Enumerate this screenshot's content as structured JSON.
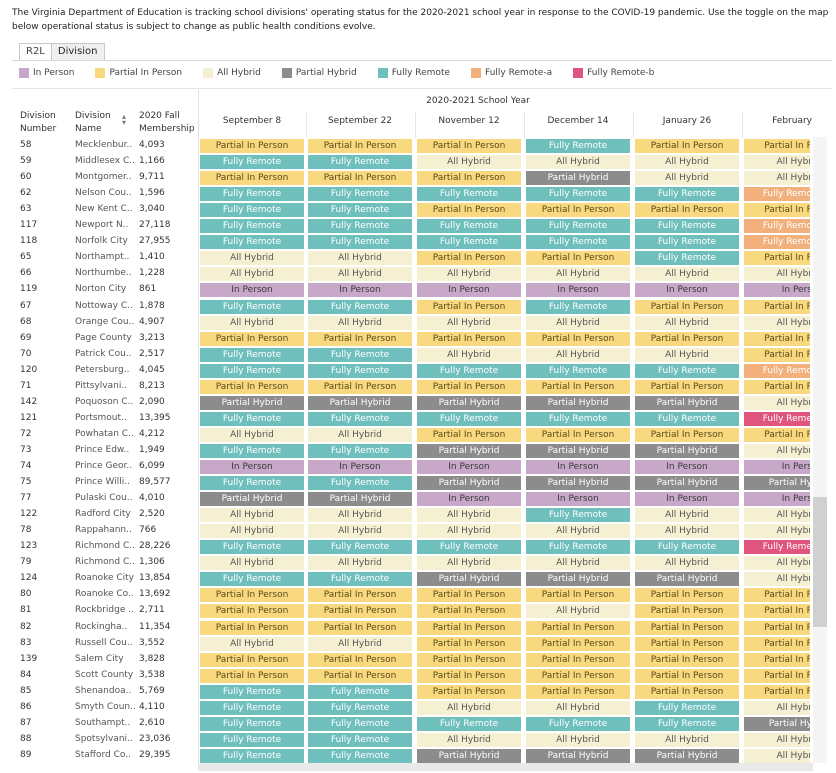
{
  "intro_text": "The Virginia Department of Education is tracking school divisions' operating status  for the 2020-2021 school year in response to the COVID-19 pandemic. Use the toggle on the map below operational status is subject to change as public health conditions evolve.",
  "tabs": [
    {
      "label": "R2L",
      "active": false
    },
    {
      "label": "Division",
      "active": true
    }
  ],
  "legend": [
    {
      "label": "In Person",
      "color": "#c8a8c8"
    },
    {
      "label": "Partial In Person",
      "color": "#f9d97f"
    },
    {
      "label": "All Hybrid",
      "color": "#f6f0d2"
    },
    {
      "label": "Partial Hybrid",
      "color": "#8c8c8c"
    },
    {
      "label": "Fully Remote",
      "color": "#6fbfbd"
    },
    {
      "label": "Fully Remote-a",
      "color": "#f2b07c"
    },
    {
      "label": "Fully Remote-b",
      "color": "#e0557d"
    }
  ],
  "axis_title": "2020-2021 School Year",
  "headers": {
    "division_number": "Division Number",
    "division_name": "Division Name",
    "membership": "2020 Fall Membership"
  },
  "columns": [
    "September 8",
    "September 22",
    "November 12",
    "December 14",
    "January 26",
    "February"
  ],
  "status_labels": {
    "in": "In Person",
    "pip": "Partial In Person",
    "ah": "All Hybrid",
    "ph": "Partial Hybrid",
    "fr": "Fully Remote",
    "fra": "Fully Remote",
    "frb": "Fully Remote"
  },
  "rows": [
    {
      "num": "58",
      "name": "Mecklenbur..",
      "mem": "4,093",
      "s": [
        "pip",
        "pip",
        "pip",
        "fr",
        "pip",
        "pip"
      ]
    },
    {
      "num": "59",
      "name": "Middlesex C..",
      "mem": "1,166",
      "s": [
        "fr",
        "fr",
        "ah",
        "ah",
        "ah",
        "ah"
      ]
    },
    {
      "num": "60",
      "name": "Montgomer..",
      "mem": "9,711",
      "s": [
        "pip",
        "pip",
        "pip",
        "ph",
        "ah",
        "ah"
      ]
    },
    {
      "num": "62",
      "name": "Nelson Cou..",
      "mem": "1,596",
      "s": [
        "fr",
        "fr",
        "fr",
        "fr",
        "fr",
        "fra"
      ]
    },
    {
      "num": "63",
      "name": "New Kent C..",
      "mem": "3,040",
      "s": [
        "fr",
        "fr",
        "pip",
        "pip",
        "pip",
        "pip"
      ]
    },
    {
      "num": "117",
      "name": "Newport N..",
      "mem": "27,118",
      "s": [
        "fr",
        "fr",
        "fr",
        "fr",
        "fr",
        "fra"
      ]
    },
    {
      "num": "118",
      "name": "Norfolk City",
      "mem": "27,955",
      "s": [
        "fr",
        "fr",
        "fr",
        "fr",
        "fr",
        "fra"
      ]
    },
    {
      "num": "65",
      "name": "Northampt..",
      "mem": "1,410",
      "s": [
        "ah",
        "ah",
        "pip",
        "pip",
        "fr",
        "pip"
      ]
    },
    {
      "num": "66",
      "name": "Northumbe..",
      "mem": "1,228",
      "s": [
        "ah",
        "ah",
        "ah",
        "ah",
        "ah",
        "ah"
      ]
    },
    {
      "num": "119",
      "name": "Norton City",
      "mem": "861",
      "s": [
        "in",
        "in",
        "in",
        "in",
        "in",
        "in"
      ]
    },
    {
      "num": "67",
      "name": "Nottoway C..",
      "mem": "1,878",
      "s": [
        "fr",
        "fr",
        "pip",
        "fr",
        "pip",
        "pip"
      ]
    },
    {
      "num": "68",
      "name": "Orange Cou..",
      "mem": "4,907",
      "s": [
        "ah",
        "ah",
        "ah",
        "ah",
        "ah",
        "ah"
      ]
    },
    {
      "num": "69",
      "name": "Page County",
      "mem": "3,213",
      "s": [
        "pip",
        "pip",
        "pip",
        "pip",
        "pip",
        "pip"
      ]
    },
    {
      "num": "70",
      "name": "Patrick Cou..",
      "mem": "2,517",
      "s": [
        "fr",
        "fr",
        "ah",
        "ah",
        "ah",
        "pip"
      ]
    },
    {
      "num": "120",
      "name": "Petersburg..",
      "mem": "4,045",
      "s": [
        "fr",
        "fr",
        "fr",
        "fr",
        "fr",
        "fra"
      ]
    },
    {
      "num": "71",
      "name": "Pittsylvani..",
      "mem": "8,213",
      "s": [
        "pip",
        "pip",
        "pip",
        "pip",
        "pip",
        "pip"
      ]
    },
    {
      "num": "142",
      "name": "Poquoson C..",
      "mem": "2,090",
      "s": [
        "ph",
        "ph",
        "ph",
        "ph",
        "ph",
        "ah"
      ]
    },
    {
      "num": "121",
      "name": "Portsmout..",
      "mem": "13,395",
      "s": [
        "fr",
        "fr",
        "fr",
        "fr",
        "fr",
        "frb"
      ]
    },
    {
      "num": "72",
      "name": "Powhatan C..",
      "mem": "4,212",
      "s": [
        "ah",
        "ah",
        "pip",
        "pip",
        "pip",
        "pip"
      ]
    },
    {
      "num": "73",
      "name": "Prince Edw..",
      "mem": "1,949",
      "s": [
        "fr",
        "fr",
        "ph",
        "ph",
        "ph",
        "ah"
      ]
    },
    {
      "num": "74",
      "name": "Prince Geor..",
      "mem": "6,099",
      "s": [
        "in",
        "in",
        "in",
        "in",
        "in",
        "in"
      ]
    },
    {
      "num": "75",
      "name": "Prince Willi..",
      "mem": "89,577",
      "s": [
        "fr",
        "fr",
        "ph",
        "ph",
        "ph",
        "ph"
      ]
    },
    {
      "num": "77",
      "name": "Pulaski Cou..",
      "mem": "4,010",
      "s": [
        "ph",
        "ph",
        "in",
        "in",
        "in",
        "in"
      ]
    },
    {
      "num": "122",
      "name": "Radford City",
      "mem": "2,520",
      "s": [
        "ah",
        "ah",
        "ah",
        "fr",
        "ah",
        "ah"
      ]
    },
    {
      "num": "78",
      "name": "Rappahann..",
      "mem": "766",
      "s": [
        "ah",
        "ah",
        "ah",
        "ah",
        "ah",
        "ah"
      ]
    },
    {
      "num": "123",
      "name": "Richmond C..",
      "mem": "28,226",
      "s": [
        "fr",
        "fr",
        "fr",
        "fr",
        "fr",
        "frb"
      ]
    },
    {
      "num": "79",
      "name": "Richmond C..",
      "mem": "1,306",
      "s": [
        "ah",
        "ah",
        "ah",
        "ah",
        "ah",
        "ah"
      ]
    },
    {
      "num": "124",
      "name": "Roanoke City",
      "mem": "13,854",
      "s": [
        "fr",
        "fr",
        "ph",
        "ph",
        "ph",
        "ah"
      ]
    },
    {
      "num": "80",
      "name": "Roanoke Co..",
      "mem": "13,692",
      "s": [
        "pip",
        "pip",
        "pip",
        "pip",
        "pip",
        "pip"
      ]
    },
    {
      "num": "81",
      "name": "Rockbridge ..",
      "mem": "2,711",
      "s": [
        "pip",
        "pip",
        "pip",
        "ah",
        "pip",
        "pip"
      ]
    },
    {
      "num": "82",
      "name": "Rockingha..",
      "mem": "11,354",
      "s": [
        "pip",
        "pip",
        "pip",
        "pip",
        "pip",
        "pip"
      ]
    },
    {
      "num": "83",
      "name": "Russell Cou..",
      "mem": "3,552",
      "s": [
        "ah",
        "ah",
        "pip",
        "pip",
        "pip",
        "pip"
      ]
    },
    {
      "num": "139",
      "name": "Salem City",
      "mem": "3,828",
      "s": [
        "pip",
        "pip",
        "pip",
        "pip",
        "pip",
        "pip"
      ]
    },
    {
      "num": "84",
      "name": "Scott County",
      "mem": "3,538",
      "s": [
        "pip",
        "pip",
        "pip",
        "pip",
        "pip",
        "pip"
      ]
    },
    {
      "num": "85",
      "name": "Shenandoa..",
      "mem": "5,769",
      "s": [
        "fr",
        "fr",
        "pip",
        "pip",
        "pip",
        "pip"
      ]
    },
    {
      "num": "86",
      "name": "Smyth Coun..",
      "mem": "4,110",
      "s": [
        "fr",
        "fr",
        "ah",
        "ah",
        "fr",
        "ah"
      ]
    },
    {
      "num": "87",
      "name": "Southampt..",
      "mem": "2,610",
      "s": [
        "fr",
        "fr",
        "fr",
        "fr",
        "fr",
        "ph"
      ]
    },
    {
      "num": "88",
      "name": "Spotsylvani..",
      "mem": "23,036",
      "s": [
        "fr",
        "fr",
        "ah",
        "ah",
        "ah",
        "ah"
      ]
    },
    {
      "num": "89",
      "name": "Stafford Co..",
      "mem": "29,395",
      "s": [
        "fr",
        "fr",
        "ph",
        "ph",
        "ph",
        "ah"
      ]
    }
  ],
  "last_col_labels": {
    "in": "In Pers",
    "pip": "Partial In P",
    "ah": "All Hybr",
    "ph": "Partial Hy",
    "fr": "Fully Remo",
    "fra": "Fully Remo",
    "frb": "Fully Reme"
  },
  "colors": {
    "border": "#e0e0e0"
  }
}
